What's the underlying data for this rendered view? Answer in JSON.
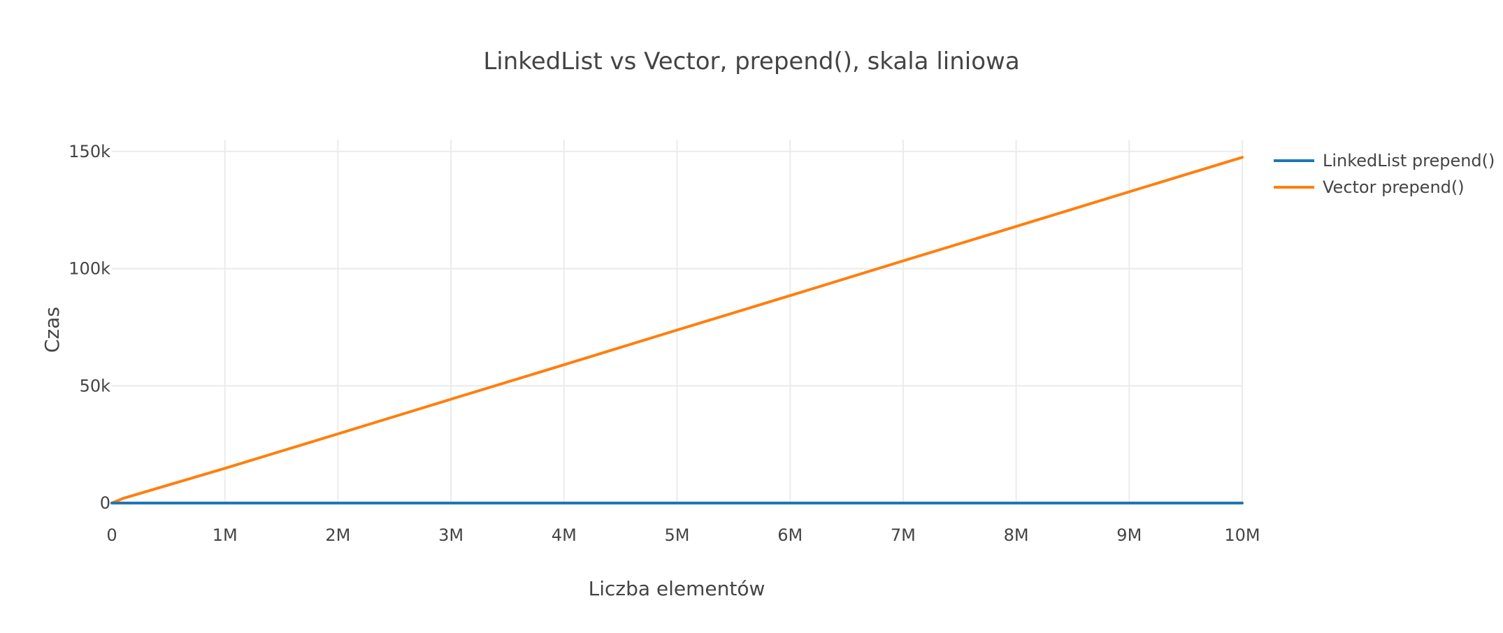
{
  "chart_data": {
    "type": "line",
    "title": "LinkedList vs Vector, prepend(), skala liniowa",
    "xlabel": "Liczba elementów",
    "ylabel": "Czas",
    "xlim": [
      0,
      10000000
    ],
    "ylim": [
      0,
      155000
    ],
    "grid": true,
    "legend_position": "top-right",
    "x_ticks": [
      {
        "value": 0,
        "label": "0"
      },
      {
        "value": 1000000,
        "label": "1M"
      },
      {
        "value": 2000000,
        "label": "2M"
      },
      {
        "value": 3000000,
        "label": "3M"
      },
      {
        "value": 4000000,
        "label": "4M"
      },
      {
        "value": 5000000,
        "label": "5M"
      },
      {
        "value": 6000000,
        "label": "6M"
      },
      {
        "value": 7000000,
        "label": "7M"
      },
      {
        "value": 8000000,
        "label": "8M"
      },
      {
        "value": 9000000,
        "label": "9M"
      },
      {
        "value": 10000000,
        "label": "10M"
      }
    ],
    "y_ticks": [
      {
        "value": 0,
        "label": "0"
      },
      {
        "value": 50000,
        "label": "50k"
      },
      {
        "value": 100000,
        "label": "100k"
      },
      {
        "value": 150000,
        "label": "150k"
      }
    ],
    "series": [
      {
        "name": "LinkedList prepend()",
        "color": "#1f77b4",
        "x": [
          0,
          1000000,
          2000000,
          3000000,
          4000000,
          5000000,
          6000000,
          7000000,
          8000000,
          9000000,
          10000000
        ],
        "y": [
          0,
          0,
          0,
          0,
          0,
          0,
          0,
          0,
          0,
          0,
          0
        ]
      },
      {
        "name": "Vector prepend()",
        "color": "#ff7f0e",
        "x": [
          0,
          100000,
          1000000,
          2000000,
          3000000,
          4000000,
          5000000,
          6000000,
          7000000,
          8000000,
          9000000,
          10000000
        ],
        "y": [
          0,
          2000,
          14800,
          29500,
          44300,
          59000,
          73800,
          88500,
          103300,
          118000,
          132800,
          147500
        ]
      }
    ]
  }
}
